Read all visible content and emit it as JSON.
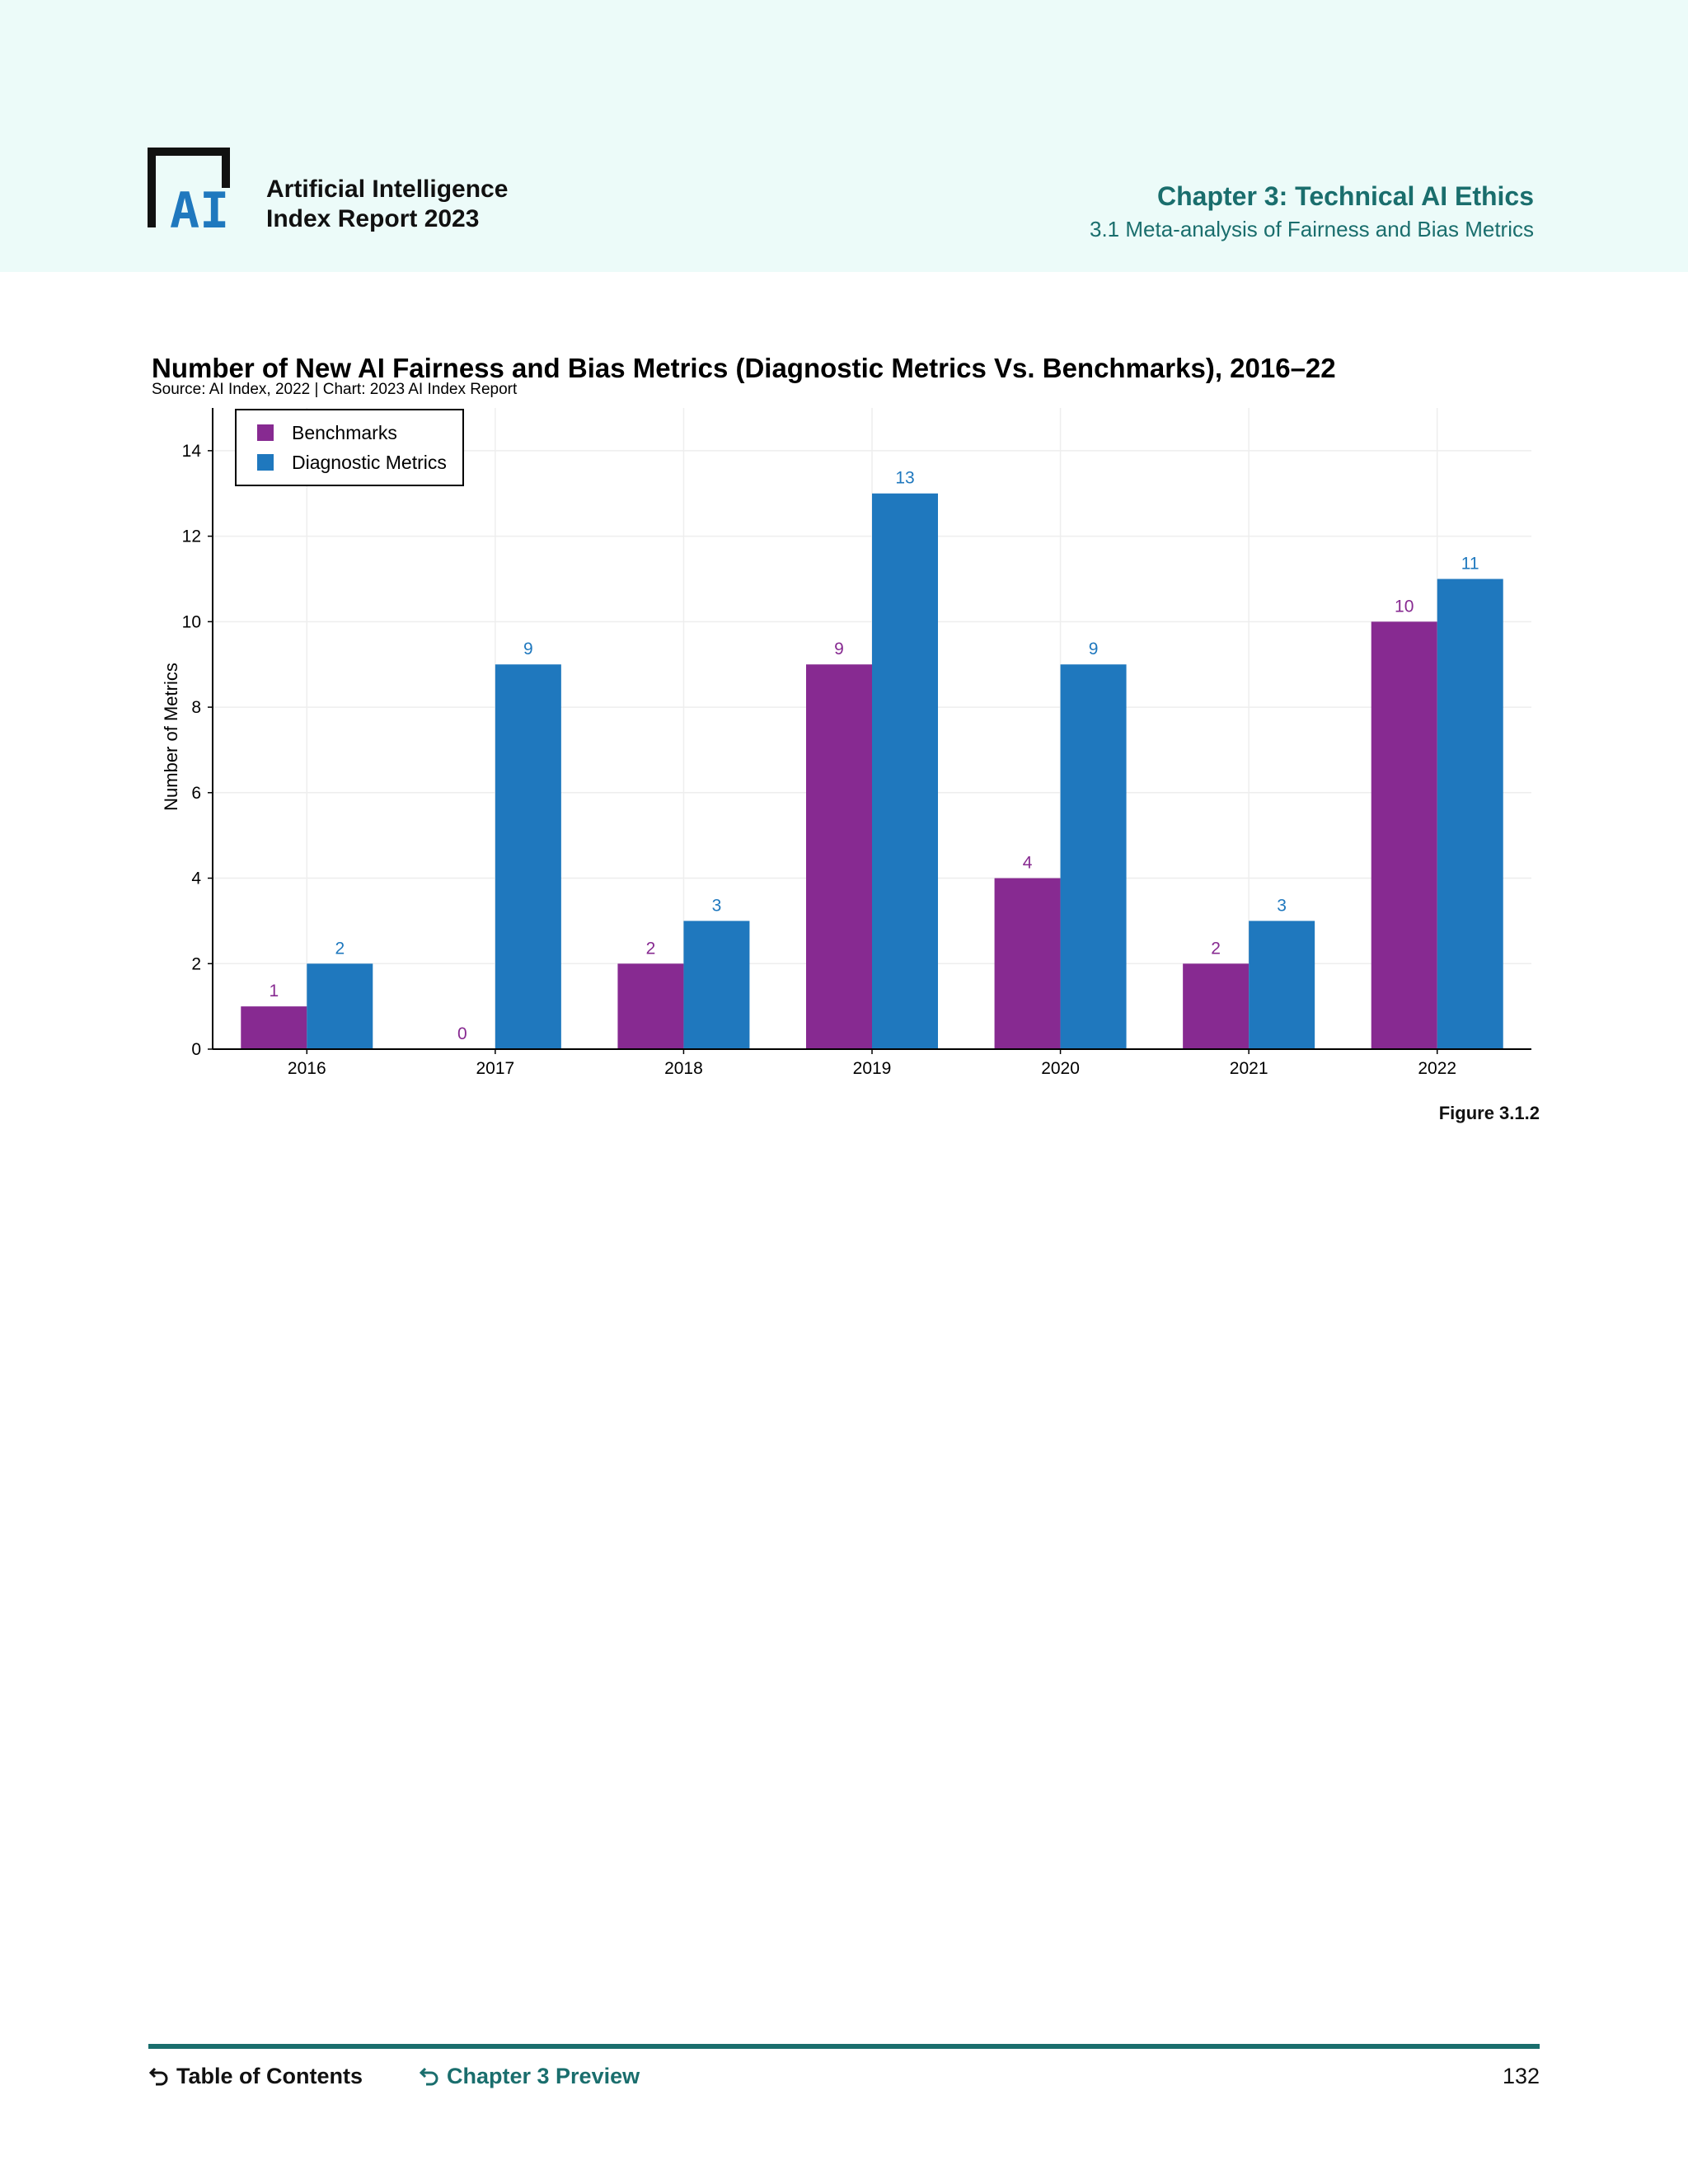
{
  "header": {
    "logo_text": "AI",
    "report_title_line1": "Artificial Intelligence",
    "report_title_line2": "Index Report 2023",
    "chapter_title": "Chapter 3: Technical AI Ethics",
    "chapter_subtitle": "3.1 Meta-analysis of Fairness and Bias Metrics"
  },
  "chart_data": {
    "type": "bar",
    "title": "Number of New AI Fairness and Bias Metrics (Diagnostic Metrics Vs. Benchmarks), 2016–22",
    "source": "Source: AI Index, 2022 | Chart: 2023 AI Index Report",
    "xlabel": "",
    "ylabel": "Number of Metrics",
    "ylim": [
      0,
      15
    ],
    "yticks": [
      0,
      2,
      4,
      6,
      8,
      10,
      12,
      14
    ],
    "grid": true,
    "legend_position": "top-left",
    "categories": [
      "2016",
      "2017",
      "2018",
      "2019",
      "2020",
      "2021",
      "2022"
    ],
    "series": [
      {
        "name": "Benchmarks",
        "color": "#872a91",
        "values": [
          1,
          0,
          2,
          9,
          4,
          2,
          10
        ]
      },
      {
        "name": "Diagnostic Metrics",
        "color": "#1f78be",
        "values": [
          2,
          9,
          3,
          13,
          9,
          3,
          11
        ]
      }
    ]
  },
  "figure_label": "Figure 3.1.2",
  "footer": {
    "toc_label": "Table of Contents",
    "chapter_preview_label": "Chapter 3 Preview",
    "page_number": "132",
    "accent_color": "#1a6e6d"
  }
}
